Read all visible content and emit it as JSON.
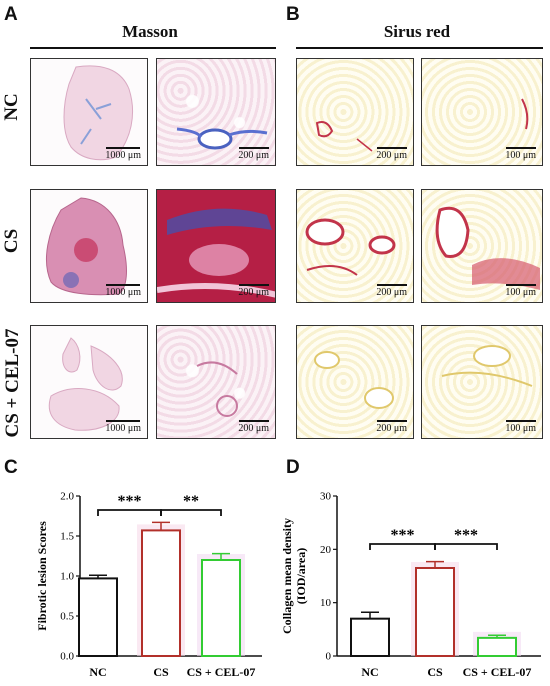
{
  "panels": {
    "A": {
      "label": "A",
      "title": "Masson"
    },
    "B": {
      "label": "B",
      "title": "Sirus red"
    },
    "C": {
      "label": "C"
    },
    "D": {
      "label": "D"
    }
  },
  "rows": [
    "NC",
    "CS",
    "CS + CEL-07"
  ],
  "scalebars": {
    "masson_low": "1000 μm",
    "masson_high": "200 μm",
    "sirius_low": "200 μm",
    "sirius_high": "100 μm"
  },
  "colors": {
    "NC": "#111111",
    "CS": "#b2302a",
    "CEL": "#33cc33",
    "masson_pink": "#e8b4cc",
    "masson_red": "#c0204a",
    "masson_blue": "#3a56b8",
    "sirius_yellow": "#f2e7a8",
    "sirius_red": "#c2344a"
  },
  "chart_data": [
    {
      "type": "bar",
      "panel": "C",
      "categories": [
        "NC",
        "CS",
        "CS + CEL-07"
      ],
      "values": [
        0.97,
        1.57,
        1.2
      ],
      "errors": [
        0.04,
        0.1,
        0.08
      ],
      "title": "",
      "xlabel": "",
      "ylabel": "Fibrotic lesion Scores",
      "ylim": [
        0.0,
        2.0
      ],
      "yticks": [
        "0.0",
        "0.5",
        "1.0",
        "1.5",
        "2.0"
      ],
      "significance": [
        {
          "from": 0,
          "to": 1,
          "label": "***"
        },
        {
          "from": 1,
          "to": 2,
          "label": "**"
        }
      ]
    },
    {
      "type": "bar",
      "panel": "D",
      "categories": [
        "NC",
        "CS",
        "CS + CEL-07"
      ],
      "values": [
        7.0,
        16.5,
        3.4
      ],
      "errors": [
        1.2,
        1.2,
        0.5
      ],
      "title": "",
      "xlabel": "",
      "ylabel": "Collagen mean density",
      "ylabel2": "(IOD/area)",
      "ylim": [
        0,
        30
      ],
      "yticks": [
        "0",
        "10",
        "20",
        "30"
      ],
      "significance": [
        {
          "from": 0,
          "to": 1,
          "label": "***"
        },
        {
          "from": 1,
          "to": 2,
          "label": "***"
        }
      ]
    }
  ]
}
